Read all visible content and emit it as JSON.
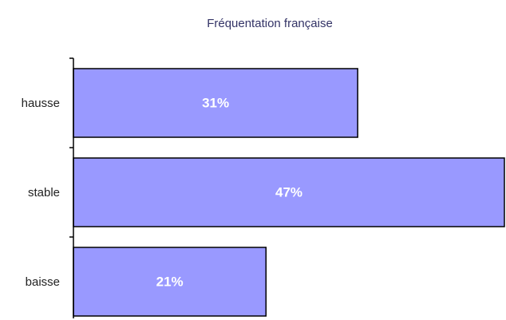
{
  "chart_data": {
    "type": "bar",
    "orientation": "horizontal",
    "title": "Fréquentation française",
    "categories": [
      "hausse",
      "stable",
      "baisse"
    ],
    "values": [
      31,
      47,
      21
    ],
    "value_labels": [
      "31%",
      "47%",
      "21%"
    ],
    "color": "#9999ff"
  }
}
